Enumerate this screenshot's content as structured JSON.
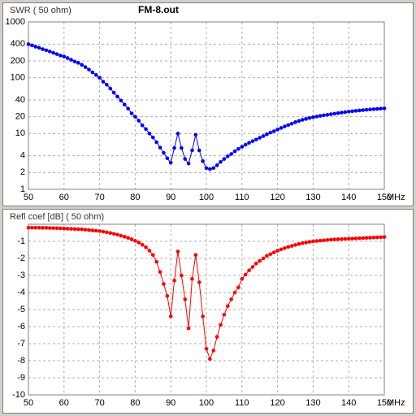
{
  "chart_data": [
    {
      "type": "line",
      "title": "FM-8.out",
      "ylabel": "SWR ( 50 ohm)",
      "xlabel": "MHz",
      "log_y": true,
      "grid": true,
      "color": "#0000ff",
      "x": [
        50,
        51,
        52,
        53,
        54,
        55,
        56,
        57,
        58,
        59,
        60,
        61,
        62,
        63,
        64,
        65,
        66,
        67,
        68,
        69,
        70,
        71,
        72,
        73,
        74,
        75,
        76,
        77,
        78,
        79,
        80,
        81,
        82,
        83,
        84,
        85,
        86,
        87,
        88,
        89,
        90,
        91,
        92,
        93,
        94,
        95,
        96,
        97,
        98,
        99,
        100,
        101,
        102,
        103,
        104,
        105,
        106,
        107,
        108,
        109,
        110,
        111,
        112,
        113,
        114,
        115,
        116,
        117,
        118,
        119,
        120,
        121,
        122,
        123,
        124,
        125,
        126,
        127,
        128,
        129,
        130,
        131,
        132,
        133,
        134,
        135,
        136,
        137,
        138,
        139,
        140,
        141,
        142,
        143,
        144,
        145,
        146,
        147,
        148,
        149,
        150
      ],
      "values": [
        400,
        380,
        360,
        345,
        325,
        310,
        295,
        280,
        265,
        250,
        240,
        225,
        210,
        195,
        185,
        170,
        155,
        140,
        125,
        112,
        100,
        85,
        75,
        64,
        54,
        46,
        39,
        33,
        28,
        23,
        20,
        17,
        14,
        12,
        10,
        8.5,
        7,
        5.6,
        4.5,
        3.6,
        3,
        5.5,
        10,
        5.5,
        3.5,
        2.9,
        5,
        9.5,
        5,
        3.2,
        2.4,
        2.3,
        2.4,
        2.7,
        3.1,
        3.5,
        3.9,
        4.3,
        4.8,
        5.3,
        5.8,
        6.3,
        6.8,
        7.3,
        7.8,
        8.4,
        9,
        9.7,
        10.4,
        11,
        11.8,
        12.6,
        13.4,
        14.2,
        15,
        16,
        16.8,
        17.6,
        18.3,
        19,
        19.6,
        20.2,
        20.7,
        21.2,
        21.7,
        22.2,
        22.7,
        23.2,
        23.7,
        24.2,
        24.7,
        25.1,
        25.5,
        25.9,
        26.3,
        26.7,
        27,
        27.3,
        27.6,
        27.9,
        28.2
      ],
      "xlim": [
        50,
        150
      ],
      "xticks": [
        50,
        60,
        70,
        80,
        90,
        100,
        110,
        120,
        130,
        140,
        150
      ],
      "ylim": [
        1,
        1000
      ],
      "yticks": [
        1,
        2,
        4,
        10,
        20,
        40,
        100,
        200,
        400,
        1000
      ]
    },
    {
      "type": "line",
      "ylabel": "Refl coef [dB] ( 50 ohm)",
      "xlabel": "MHz",
      "log_y": false,
      "grid": true,
      "color": "#ff0000",
      "x": [
        50,
        51,
        52,
        53,
        54,
        55,
        56,
        57,
        58,
        59,
        60,
        61,
        62,
        63,
        64,
        65,
        66,
        67,
        68,
        69,
        70,
        71,
        72,
        73,
        74,
        75,
        76,
        77,
        78,
        79,
        80,
        81,
        82,
        83,
        84,
        85,
        86,
        87,
        88,
        89,
        90,
        91,
        92,
        93,
        94,
        95,
        96,
        97,
        98,
        99,
        100,
        101,
        102,
        103,
        104,
        105,
        106,
        107,
        108,
        109,
        110,
        111,
        112,
        113,
        114,
        115,
        116,
        117,
        118,
        119,
        120,
        121,
        122,
        123,
        124,
        125,
        126,
        127,
        128,
        129,
        130,
        131,
        132,
        133,
        134,
        135,
        136,
        137,
        138,
        139,
        140,
        141,
        142,
        143,
        144,
        145,
        146,
        147,
        148,
        149,
        150
      ],
      "values": [
        -0.2,
        -0.2,
        -0.2,
        -0.2,
        -0.21,
        -0.21,
        -0.22,
        -0.22,
        -0.23,
        -0.24,
        -0.25,
        -0.26,
        -0.27,
        -0.28,
        -0.29,
        -0.3,
        -0.32,
        -0.34,
        -0.36,
        -0.38,
        -0.4,
        -0.43,
        -0.47,
        -0.51,
        -0.56,
        -0.61,
        -0.67,
        -0.73,
        -0.8,
        -0.88,
        -0.97,
        -1.07,
        -1.2,
        -1.35,
        -1.55,
        -1.8,
        -2.2,
        -2.8,
        -3.5,
        -4.2,
        -5.4,
        -3.3,
        -1.6,
        -3.0,
        -4.4,
        -6.1,
        -3.2,
        -1.8,
        -3.4,
        -5.4,
        -7.3,
        -7.9,
        -7.4,
        -6.6,
        -5.9,
        -5.3,
        -4.8,
        -4.4,
        -4.0,
        -3.7,
        -3.2,
        -2.95,
        -2.7,
        -2.5,
        -2.3,
        -2.15,
        -2.0,
        -1.85,
        -1.75,
        -1.65,
        -1.55,
        -1.47,
        -1.4,
        -1.33,
        -1.27,
        -1.21,
        -1.16,
        -1.11,
        -1.07,
        -1.03,
        -1.0,
        -0.98,
        -0.96,
        -0.94,
        -0.92,
        -0.9,
        -0.89,
        -0.88,
        -0.87,
        -0.86,
        -0.85,
        -0.84,
        -0.83,
        -0.82,
        -0.81,
        -0.8,
        -0.79,
        -0.78,
        -0.77,
        -0.76,
        -0.75
      ],
      "xlim": [
        50,
        150
      ],
      "xticks": [
        50,
        60,
        70,
        80,
        90,
        100,
        110,
        120,
        130,
        140,
        150
      ],
      "ylim": [
        -10,
        0
      ],
      "yticks": [
        -1,
        -2,
        -3,
        -4,
        -5,
        -6,
        -7,
        -8,
        -9,
        -10
      ]
    }
  ]
}
